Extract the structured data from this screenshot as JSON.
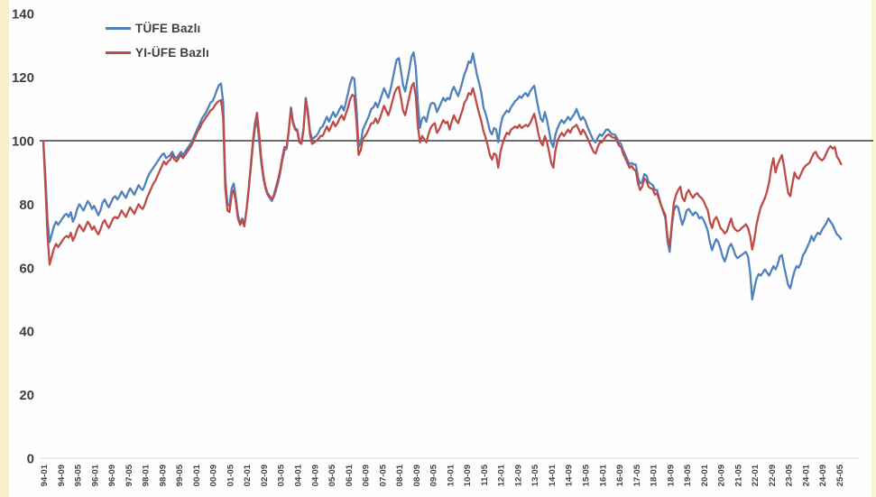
{
  "chart_data": {
    "type": "line",
    "title": "",
    "x_start": "1994-01",
    "x_end": "2025-06",
    "x_frequency": "monthly",
    "grid": false,
    "legend_position": "top-left",
    "ylim": [
      0,
      140
    ],
    "y_ticks": [
      0,
      20,
      40,
      60,
      80,
      100,
      120,
      140
    ],
    "reference_line": {
      "value": 100,
      "color": "#3a3a3a"
    },
    "baseline_color": "#d9d9d9",
    "axis_text_color": "#3f3f3f",
    "x_tick_labels": [
      "94-01",
      "94-09",
      "95-05",
      "96-01",
      "96-09",
      "97-05",
      "98-01",
      "98-09",
      "99-05",
      "00-01",
      "00-09",
      "01-05",
      "02-01",
      "02-09",
      "03-05",
      "04-01",
      "04-09",
      "05-05",
      "06-01",
      "06-09",
      "07-05",
      "08-01",
      "08-09",
      "09-05",
      "10-01",
      "10-09",
      "11-05",
      "12-01",
      "12-09",
      "13-05",
      "14-01",
      "14-09",
      "15-05",
      "16-01",
      "16-09",
      "17-05",
      "18-01",
      "18-09",
      "19-05",
      "20-01",
      "20-09",
      "21-05",
      "22-01",
      "22-09",
      "23-05",
      "24-01",
      "24-09",
      "25-05"
    ],
    "x_tick_step_months": 8,
    "series": [
      {
        "name": "TÜFE Bazlı",
        "color": "#4f81bd",
        "values": [
          100,
          89,
          75,
          68,
          70.5,
          73,
          74.5,
          73.5,
          74.5,
          75.5,
          76.5,
          77,
          76,
          77.5,
          74.5,
          76,
          78.5,
          80,
          79,
          78,
          79.5,
          81,
          80,
          78.5,
          79.5,
          78,
          76.5,
          78,
          80.5,
          81.5,
          80,
          79,
          80.5,
          82,
          82.5,
          81.5,
          82.5,
          84,
          83,
          82,
          83.5,
          85,
          84,
          83,
          84.5,
          86,
          85,
          84.5,
          86,
          88,
          89.5,
          90.5,
          91.5,
          92.5,
          93.5,
          94.5,
          95.5,
          96,
          94.5,
          95,
          95.5,
          96.5,
          95,
          94.5,
          95.5,
          96.5,
          95.5,
          96.5,
          97.5,
          98.5,
          99.5,
          101,
          102.5,
          104,
          105.5,
          107,
          108,
          109,
          110.5,
          112,
          112.5,
          114,
          116,
          117.5,
          118,
          112,
          88,
          80,
          79.5,
          85,
          86.5,
          82,
          76.5,
          74,
          75.5,
          73.5,
          78,
          84,
          91,
          98,
          104,
          106.5,
          100,
          93,
          88,
          85,
          83,
          82,
          81,
          82.5,
          84.5,
          87,
          90,
          94,
          97,
          97.5,
          103,
          110.5,
          106,
          104,
          103.5,
          100,
          99.5,
          104,
          113.5,
          109.5,
          103,
          100.5,
          101,
          101.5,
          102.5,
          104,
          104.5,
          106,
          107.5,
          106,
          107.5,
          109,
          107.5,
          108.5,
          110,
          111,
          109.5,
          112,
          115,
          118,
          120,
          119.5,
          110,
          98,
          99.5,
          103.5,
          105,
          106.5,
          108,
          110,
          110.5,
          112,
          110.5,
          112.5,
          114.5,
          116.5,
          115,
          113.5,
          116,
          119,
          122.5,
          125.5,
          126,
          122,
          117.5,
          115.5,
          119,
          122.5,
          126.5,
          127.8,
          123,
          112,
          104,
          107,
          107.5,
          106,
          109,
          111.5,
          112,
          111.5,
          109,
          110.5,
          112,
          113.5,
          112.5,
          113.5,
          113,
          115.5,
          117,
          115.5,
          114,
          116,
          118.5,
          121,
          122.5,
          125,
          124.5,
          127.5,
          124,
          120.5,
          118,
          115,
          110.5,
          108.5,
          106,
          103,
          102,
          104,
          103.5,
          99.5,
          104.5,
          107.5,
          108.5,
          109.5,
          109,
          110.5,
          111.5,
          112.5,
          113,
          114,
          113.5,
          114.5,
          115,
          114,
          115.5,
          116.5,
          117.3,
          113.5,
          110,
          107,
          106,
          109,
          106.5,
          103,
          99.5,
          98,
          102,
          104,
          105.5,
          106.5,
          105.5,
          106.5,
          107.5,
          106.5,
          107.5,
          108.5,
          110,
          108,
          106.5,
          107.5,
          106.5,
          104.5,
          103,
          101.5,
          100,
          99.5,
          101,
          102,
          101.5,
          102.5,
          103.5,
          103.5,
          102.5,
          102,
          102,
          101,
          99.5,
          99,
          97,
          95.5,
          94,
          92.5,
          93,
          92.5,
          92.5,
          88.5,
          86.5,
          87,
          89.5,
          89,
          87,
          86.5,
          86,
          84.5,
          84.5,
          82,
          79.5,
          77.5,
          75.5,
          68,
          65,
          73,
          78,
          79.5,
          79,
          76,
          73.5,
          75.5,
          78,
          78.5,
          77.5,
          76.5,
          77.5,
          77,
          75.5,
          76,
          75,
          73.5,
          71.5,
          68,
          65.5,
          67.5,
          69,
          68,
          66,
          63.5,
          62,
          64,
          66.5,
          67.5,
          66,
          64,
          63,
          63.5,
          64,
          64.5,
          65,
          63.5,
          58.5,
          50,
          53.5,
          56.5,
          58,
          57.5,
          58.5,
          59.5,
          58.5,
          57.5,
          59,
          60.5,
          59.5,
          61,
          63.5,
          64,
          60.5,
          57.5,
          54.5,
          53.5,
          56.5,
          59,
          60.5,
          60,
          61.5,
          64,
          65,
          66.5,
          68,
          70,
          68.5,
          70,
          71,
          70.5,
          72,
          73,
          74,
          75.5,
          74.5,
          73.5,
          72,
          70.5,
          70,
          69
        ]
      },
      {
        "name": "YI-ÜFE Bazlı",
        "color": "#bf4b48",
        "values": [
          100,
          86,
          70,
          61,
          63.5,
          66,
          67.5,
          66.5,
          67.5,
          68.5,
          69.5,
          70,
          69.5,
          71,
          68.5,
          70,
          72,
          73.5,
          72.5,
          71.5,
          73,
          74.5,
          73.5,
          72,
          73,
          71.5,
          70.5,
          72,
          74,
          75,
          73.5,
          72.5,
          74,
          75.5,
          76,
          75.5,
          76.5,
          78,
          77,
          76,
          77.5,
          79,
          78,
          77,
          78.5,
          80,
          79,
          78.5,
          80,
          82,
          83.5,
          85,
          86.5,
          87.5,
          89,
          90.5,
          92,
          93.5,
          92.5,
          93.5,
          94,
          95.5,
          94,
          93.5,
          94.5,
          95.5,
          94.5,
          95.5,
          96.5,
          97.5,
          98.5,
          100,
          101.5,
          103,
          104,
          105.5,
          106.5,
          107.5,
          108.5,
          109.5,
          110,
          111,
          112,
          112.5,
          112.8,
          107,
          85,
          78,
          77.5,
          83,
          84.5,
          80.5,
          75.5,
          73.5,
          75,
          73,
          78,
          84.5,
          92,
          99.5,
          105.5,
          108.8,
          102,
          94.5,
          89,
          85.5,
          83.5,
          82.5,
          81.5,
          83,
          85.5,
          88,
          91,
          95,
          98,
          98,
          103.5,
          110,
          105.5,
          103.5,
          103,
          99.5,
          99,
          103.5,
          113,
          108.5,
          102,
          99,
          99.5,
          100,
          100.5,
          101.5,
          101.5,
          103,
          104.5,
          103,
          104.5,
          106,
          104.5,
          105.5,
          107,
          108,
          106.5,
          108.5,
          110.5,
          113,
          114.5,
          114,
          106,
          95.5,
          97,
          100.5,
          101.5,
          102.5,
          104,
          105.5,
          105.5,
          107,
          105.5,
          107,
          109,
          111,
          109.5,
          108,
          110,
          112.5,
          115,
          116.5,
          117,
          113.5,
          109.5,
          108,
          111,
          114,
          117,
          118.2,
          114,
          104.5,
          99.5,
          101.5,
          100.5,
          99.5,
          102,
          104,
          105,
          105.5,
          102.5,
          103.5,
          105,
          106.5,
          105.5,
          106,
          103.5,
          106,
          108,
          106.5,
          105.5,
          107.5,
          109.5,
          112,
          113,
          115,
          114.5,
          116.5,
          114,
          111,
          108.5,
          106,
          103,
          101,
          98.5,
          95.5,
          94,
          96,
          95.5,
          91.5,
          96.5,
          99,
          101,
          102.5,
          102,
          103.5,
          104,
          104.5,
          104,
          105,
          104,
          104.5,
          105,
          104.5,
          105.5,
          107,
          108.5,
          105.5,
          102,
          99.5,
          98.5,
          101.5,
          99.5,
          96.5,
          93,
          91.5,
          97,
          100,
          101.5,
          102.5,
          101.5,
          102.5,
          103.5,
          102.5,
          104,
          104.5,
          105,
          103.5,
          102,
          103.5,
          102.5,
          101,
          99.5,
          98,
          96.5,
          96,
          98,
          99.5,
          99.5,
          100.5,
          101.5,
          102,
          101.5,
          101,
          101,
          100,
          98.5,
          98,
          96,
          94.5,
          93,
          91.5,
          92,
          91,
          90.5,
          86.5,
          84.5,
          85.5,
          88,
          87.5,
          85.5,
          85,
          84.8,
          83,
          83.5,
          81.5,
          79.5,
          78,
          76.5,
          69.5,
          66.8,
          74,
          80.5,
          83,
          84.5,
          85.5,
          82,
          81,
          83.5,
          84.5,
          83,
          82,
          83,
          83.5,
          82.5,
          82,
          81,
          79.5,
          78,
          74.5,
          72.5,
          75,
          76,
          74.5,
          72.5,
          71.8,
          70.8,
          71.5,
          73.5,
          75.5,
          73,
          72,
          71.5,
          71.8,
          72.5,
          73,
          73.7,
          72.5,
          70,
          65.7,
          69,
          73.5,
          76.5,
          79,
          80.5,
          82,
          84,
          87,
          91.5,
          94.5,
          90,
          92.5,
          94,
          95.5,
          92,
          87.5,
          83.5,
          82.5,
          86.5,
          90,
          88.5,
          88,
          89.5,
          91,
          92,
          92.5,
          93,
          94.5,
          96,
          96.5,
          95,
          94.3,
          93.8,
          94.5,
          96,
          97.5,
          98.3,
          97.5,
          98,
          95,
          94,
          92.6
        ]
      }
    ]
  }
}
